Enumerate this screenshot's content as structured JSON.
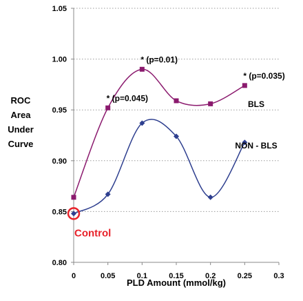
{
  "chart_data": {
    "type": "line",
    "xlabel": "PLD Amount (mmol/kg)",
    "ylabel_lines": [
      "ROC",
      "Area",
      "Under",
      "Curve"
    ],
    "xlim": [
      0,
      0.3
    ],
    "ylim": [
      0.8,
      1.05
    ],
    "x_ticks": [
      "0",
      "0.05",
      "0.1",
      "0.15",
      "0.2",
      "0.25",
      "0.3"
    ],
    "y_ticks": [
      "0.80",
      "0.85",
      "0.90",
      "0.95",
      "1.00",
      "1.05"
    ],
    "grid": "horizontal-dotted",
    "series": [
      {
        "name": "BLS",
        "color": "#8B1A6E",
        "marker": "square",
        "x": [
          0,
          0.05,
          0.1,
          0.15,
          0.2,
          0.25
        ],
        "values": [
          0.864,
          0.952,
          0.99,
          0.959,
          0.956,
          0.974
        ]
      },
      {
        "name": "NON - BLS",
        "color": "#2E3F8F",
        "marker": "diamond",
        "x": [
          0,
          0.05,
          0.1,
          0.15,
          0.2,
          0.25
        ],
        "values": [
          0.848,
          0.867,
          0.937,
          0.924,
          0.864,
          0.918
        ]
      }
    ],
    "annotations": [
      {
        "text": "* (p=0.045)",
        "x": 0.05,
        "y": 0.952
      },
      {
        "text": "* (p=0.01)",
        "x": 0.1,
        "y": 0.99
      },
      {
        "text": "* (p=0.035)",
        "x": 0.25,
        "y": 0.974
      }
    ],
    "control": {
      "label": "Control",
      "x": 0,
      "y": 0.848,
      "color": "#E8222A"
    }
  }
}
